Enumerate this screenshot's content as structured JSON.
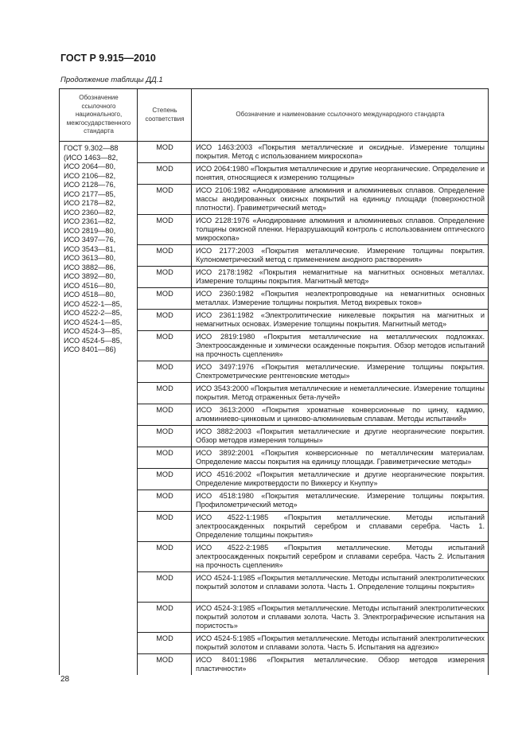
{
  "header": {
    "title": "ГОСТ Р 9.915—2010",
    "caption": "Продолжение таблицы ДД.1"
  },
  "table": {
    "columns": [
      "Обозначение ссылочного национального, межгосударственного стандарта",
      "Степень соответствия",
      "Обозначение и наименование ссылочного международного стандарта"
    ],
    "national_standard": [
      "ГОСТ 9.302—88",
      "(ИСО 1463—82,",
      "ИСО 2064—80,",
      "ИСО 2106—82,",
      "ИСО 2128—76,",
      "ИСО 2177—85,",
      "ИСО 2178—82,",
      "ИСО 2360—82,",
      "ИСО 2361—82,",
      "ИСО 2819—80,",
      "ИСО 3497—76,",
      "ИСО 3543—81,",
      "ИСО 3613—80,",
      "ИСО 3882—86,",
      "ИСО 3892—80,",
      "ИСО 4516—80,",
      "ИСО 4518—80,",
      "ИСО 4522-1—85,",
      "ИСО 4522-2—85,",
      "ИСО 4524-1—85,",
      "ИСО 4524-3—85,",
      "ИСО 4524-5—85,",
      "ИСО 8401—86)"
    ],
    "rows": [
      {
        "degree": "MOD",
        "text": "ИСО 1463:2003 «Покрытия металлические и оксидные. Измерение толщины покрытия. Метод с использованием микроскопа»",
        "lines": 2
      },
      {
        "degree": "MOD",
        "text": "ИСО 2064:1980 «Покрытия металлические и другие неорганические. Определение и понятия, относящиеся к измерению толщины»",
        "lines": 2
      },
      {
        "degree": "MOD",
        "text": "ИСО 2106:1982 «Анодирование алюминия и алюминиевых сплавов. Определение массы анодированных окисных покрытий на единицу площади (поверхностной плотности). Гравиметрический метод»",
        "lines": 3
      },
      {
        "degree": "MOD",
        "text": "ИСО 2128:1976 «Анодирование алюминия и алюминиевых сплавов. Определение толщины окисной пленки. Неразрушающий контроль с использованием оптического микроскопа»",
        "lines": 3
      },
      {
        "degree": "MOD",
        "text": "ИСО 2177:2003 «Покрытия металлические. Измерение толщины покрытия. Кулонометрический метод с применением анодного растворения»",
        "lines": 2
      },
      {
        "degree": "MOD",
        "text": "ИСО 2178:1982 «Покрытия немагнитные на магнитных основных металлах. Измерение толщины покрытия. Магнитный метод»",
        "lines": 2
      },
      {
        "degree": "MOD",
        "text": "ИСО 2360:1982 «Покрытия неэлектропроводные на немагнитных основных металлах. Измерение толщины покрытия. Метод вихревых токов»",
        "lines": 2
      },
      {
        "degree": "MOD",
        "text": "ИСО 2361:1982 «Электролитические никелевые покрытия на магнитных и немагнитных основах. Измерение толщины покрытия. Магнитный метод»",
        "lines": 2
      },
      {
        "degree": "MOD",
        "text": "ИСО 2819:1980 «Покрытия металлические на металлических подложках. Электроосажденные и химически осажденные покрытия. Обзор методов испытаний на прочность сцепления»",
        "lines": 3
      },
      {
        "degree": "MOD",
        "text": "ИСО 3497:1976 «Покрытия металлические. Измерение толщины покрытия. Спектрометрические рентгеновские методы»",
        "lines": 2
      },
      {
        "degree": "MOD",
        "text": "ИСО 3543:2000 «Покрытия металлические и неметаллические. Измерение толщины покрытия. Метод отраженных бета-лучей»",
        "lines": 2
      },
      {
        "degree": "MOD",
        "text": "ИСО 3613:2000 «Покрытия хроматные конверсионные по цинку, кадмию, алюминиево-цинковым и цинково-алюминиевым сплавам. Методы испытаний»",
        "lines": 2
      },
      {
        "degree": "MOD",
        "text": "ИСО 3882:2003 «Покрытия металлические и другие неорганические покрытия. Обзор методов измерения толщины»",
        "lines": 2
      },
      {
        "degree": "MOD",
        "text": "ИСО 3892:2001 «Покрытия конверсионные по металлическим материалам. Определение массы покрытия на единицу площади. Гравиметрические методы»",
        "lines": 2
      },
      {
        "degree": "MOD",
        "text": "ИСО 4516:2002 «Покрытия металлические и другие неорганические покрытия. Определение микротвердости по Виккерсу и Кнуппу»",
        "lines": 2
      },
      {
        "degree": "MOD",
        "text": "ИСО 4518:1980 «Покрытия металлические. Измерение толщины покрытия. Профилометрический метод»",
        "lines": 2
      },
      {
        "degree": "MOD",
        "text": "ИСО 4522-1:1985 «Покрытия металлические. Методы испытаний электроосажденных покрытий серебром и сплавами серебра. Часть 1. Определение толщины покрытия»",
        "lines": 3
      },
      {
        "degree": "MOD",
        "text": "ИСО 4522-2:1985 «Покрытия металлические. Методы испытаний электроосажденных покрытий серебром и сплавами серебра. Часть 2. Испытания на прочность сцепления»",
        "lines": 3
      },
      {
        "degree": "MOD",
        "text": "ИСО 4524-1:1985 «Покрытия металлические. Методы испытаний электролитических покрытий золотом и сплавами золота. Часть 1. Определение толщины покрытия»",
        "lines": 3
      },
      {
        "degree": "MOD",
        "text": "ИСО 4524-3:1985 «Покрытия металлические. Методы испытаний электролитических покрытий золотом и сплавами золота. Часть 3. Электрографические испытания на пористость»",
        "lines": 3
      },
      {
        "degree": "MOD",
        "text": "ИСО 4524-5:1985 «Покрытия металлические. Методы испытаний электролитических покрытий золотом и сплавами золота. Часть 5. Испытания на адгезию»",
        "lines": 2
      },
      {
        "degree": "MOD",
        "text": "ИСО 8401:1986 «Покрытия металлические. Обзор методов измерения пластичности»",
        "lines": 2
      }
    ]
  },
  "footer": {
    "page_number": "28"
  }
}
